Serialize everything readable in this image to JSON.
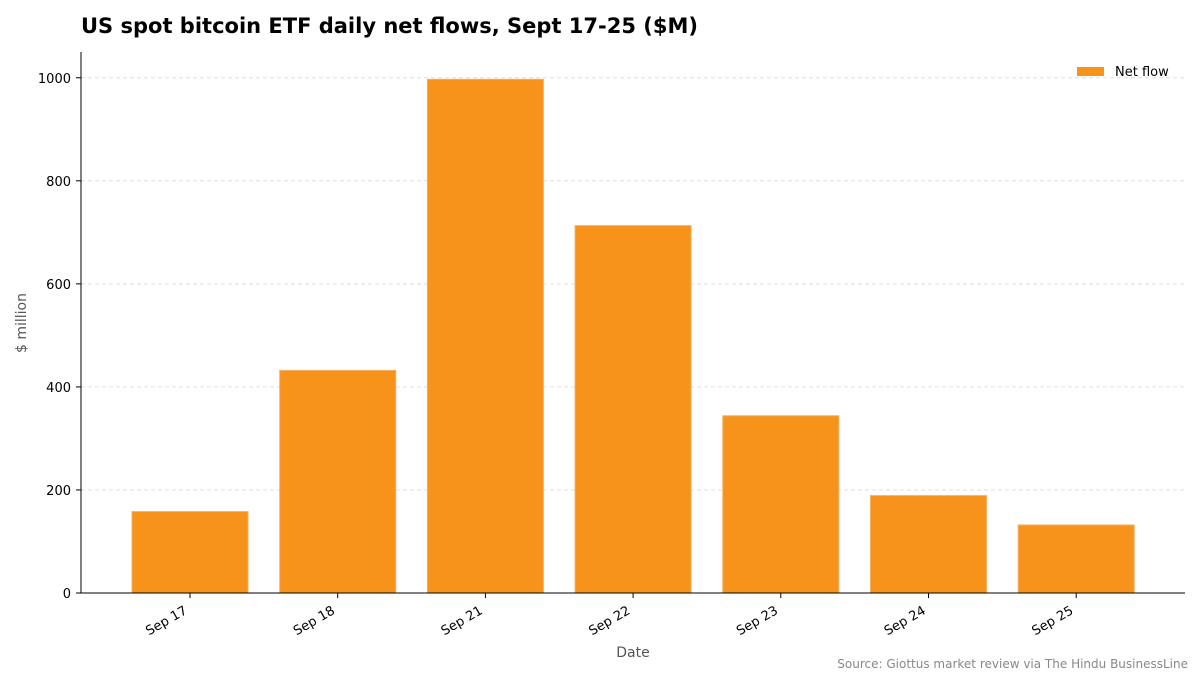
{
  "chart_data": {
    "type": "bar",
    "title": "US spot bitcoin ETF daily net flows, Sept 17-25 ($M)",
    "xlabel": "Date",
    "ylabel": "$ million",
    "categories": [
      "Sep 17",
      "Sep 18",
      "Sep 21",
      "Sep 22",
      "Sep 23",
      "Sep 24",
      "Sep 25"
    ],
    "series": [
      {
        "name": "Net flow",
        "values": [
          158,
          432,
          997,
          713,
          344,
          189,
          132
        ]
      }
    ],
    "ylim": [
      0,
      1050
    ],
    "yticks": [
      0,
      200,
      400,
      600,
      800,
      1000
    ],
    "grid": "horizontal dashed",
    "legend_position": "top-right",
    "colors": {
      "bar": "#f7931a",
      "bar_edge": "#f0b060",
      "grid": "#dddddd",
      "axis": "#000000"
    },
    "source": "Source: Giottus market review via The Hindu BusinessLine"
  }
}
